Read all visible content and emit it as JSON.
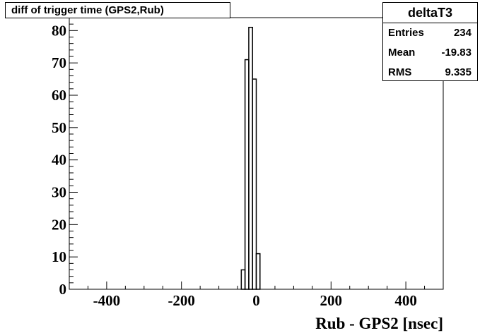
{
  "title": "diff of trigger time (GPS2,Rub)",
  "stats": {
    "name": "deltaT3",
    "rows": [
      {
        "label": "Entries",
        "value": "234"
      },
      {
        "label": "Mean",
        "value": "-19.83"
      },
      {
        "label": "RMS",
        "value": "9.335"
      }
    ]
  },
  "colors": {
    "line": "#000000",
    "background": "#ffffff"
  },
  "chart_data": {
    "type": "bar",
    "title": "diff of trigger time (GPS2,Rub)",
    "xlabel": "Rub - GPS2 [nsec]",
    "ylabel": "",
    "xlim": [
      -500,
      500
    ],
    "ylim": [
      0,
      84
    ],
    "x_ticks": [
      -400,
      -200,
      0,
      200,
      400
    ],
    "y_ticks": [
      0,
      10,
      20,
      30,
      40,
      50,
      60,
      70,
      80
    ],
    "bin_width": 10,
    "bins": [
      {
        "low": -40,
        "high": -30,
        "count": 6
      },
      {
        "low": -30,
        "high": -20,
        "count": 71
      },
      {
        "low": -20,
        "high": -10,
        "count": 81
      },
      {
        "low": -10,
        "high": 0,
        "count": 65
      },
      {
        "low": 0,
        "high": 10,
        "count": 11
      }
    ],
    "grid": false
  }
}
